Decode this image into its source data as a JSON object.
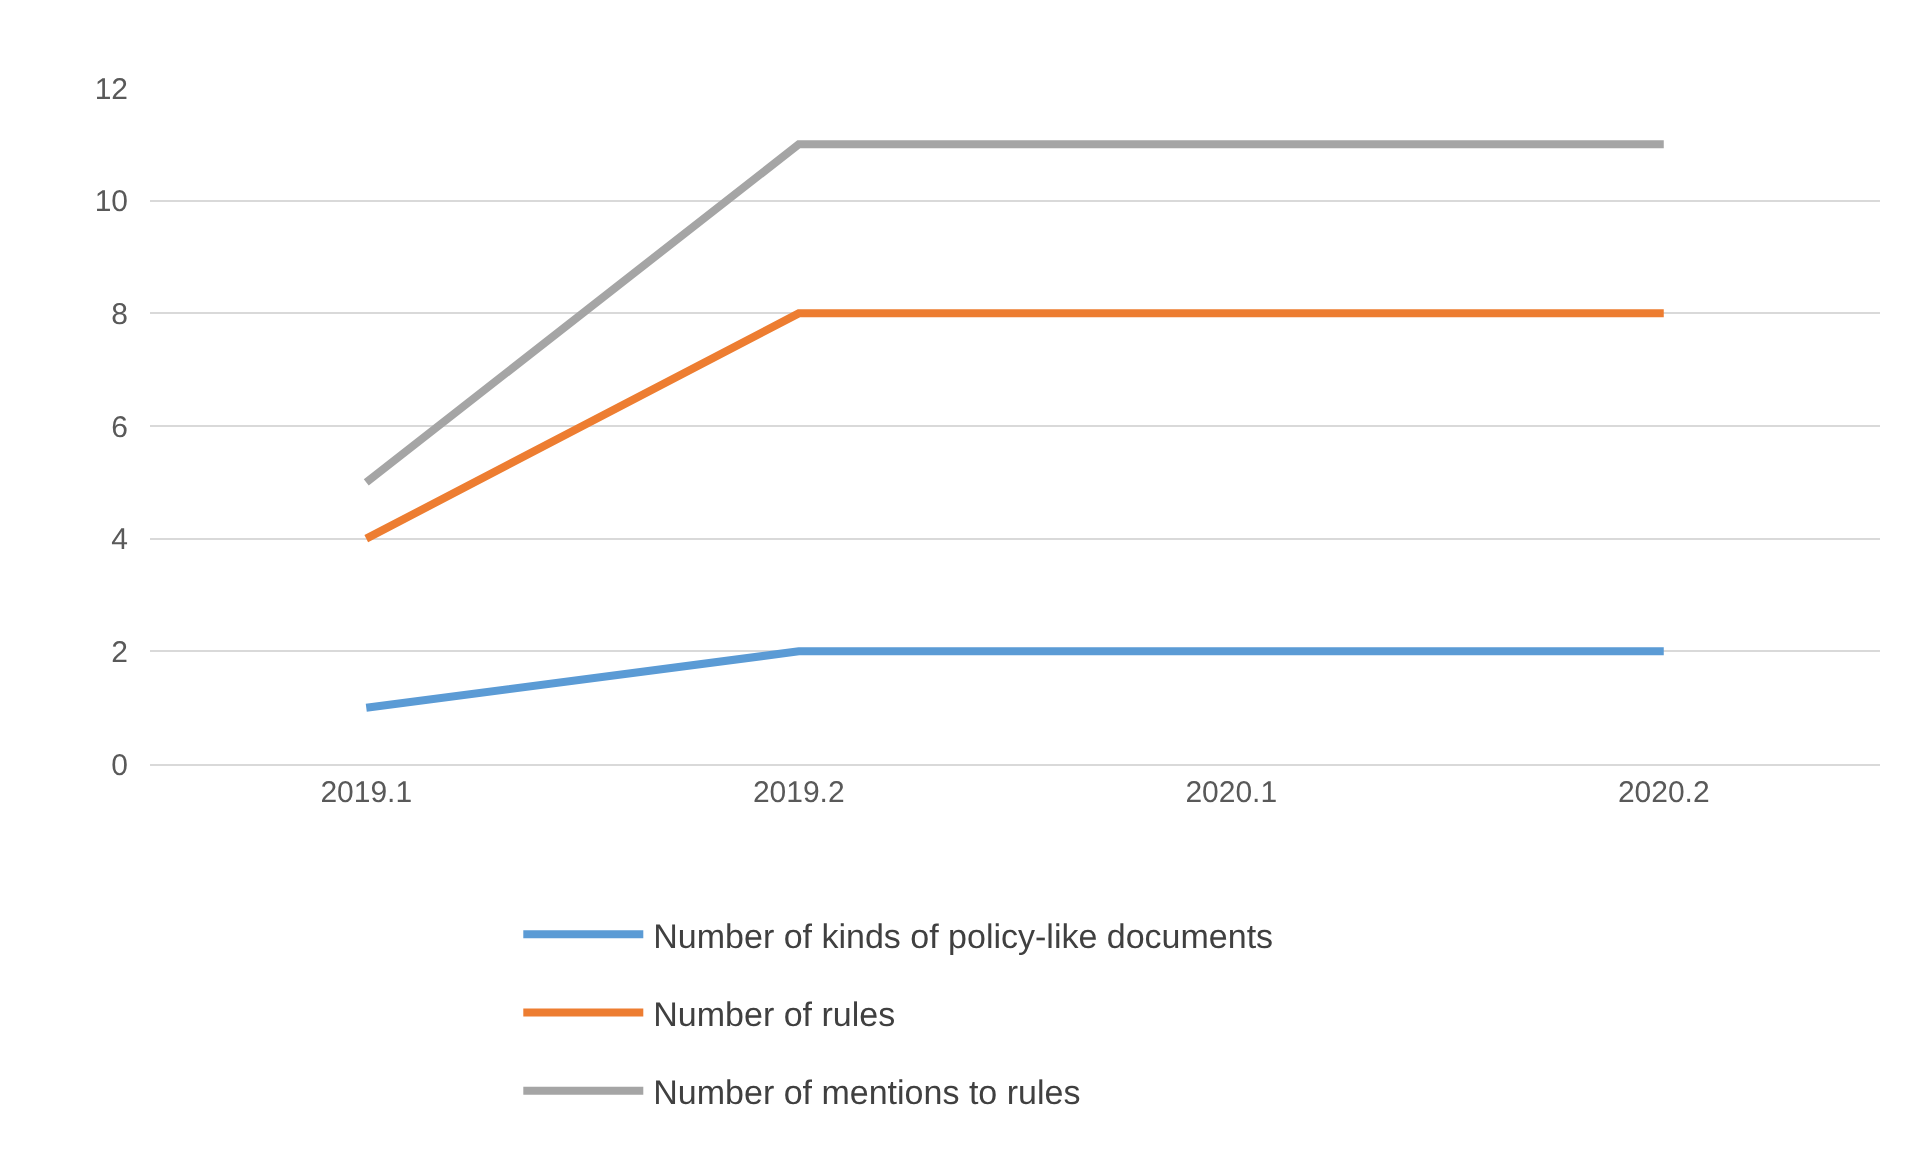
{
  "chart_data": {
    "type": "line",
    "categories": [
      "2019.1",
      "2019.2",
      "2020.1",
      "2020.2"
    ],
    "series": [
      {
        "name": "Number of kinds of policy-like documents",
        "color": "#5b9bd5",
        "values": [
          1,
          2,
          2,
          2
        ]
      },
      {
        "name": "Number of rules",
        "color": "#ed7d31",
        "values": [
          4,
          8,
          8,
          8
        ]
      },
      {
        "name": "Number of mentions to rules",
        "color": "#a5a5a5",
        "values": [
          5,
          11,
          11,
          11
        ]
      }
    ],
    "ylim": [
      0,
      12
    ],
    "yticks": [
      0,
      2,
      4,
      6,
      8,
      10,
      12
    ],
    "grid": "y",
    "legend": "bottom",
    "marker": "none",
    "line_style": "solid"
  }
}
